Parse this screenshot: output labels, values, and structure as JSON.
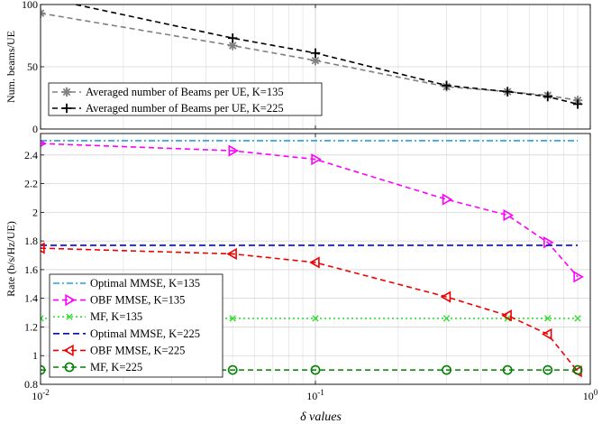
{
  "chart_data": [
    {
      "type": "line",
      "title": "",
      "xlabel": "",
      "ylabel": "Num. beams/UE",
      "xscale": "log",
      "xlim": [
        0.01,
        1
      ],
      "ylim": [
        0,
        100
      ],
      "yticks": [
        0,
        50,
        100
      ],
      "grid": true,
      "legend_position": "bottom-left",
      "x": [
        0.01,
        0.05,
        0.1,
        0.3,
        0.5,
        0.7,
        0.9
      ],
      "series": [
        {
          "name": "Averaged number of Beams per UE, K=135",
          "color": "#808080",
          "marker": "asterisk",
          "dash": "6,4",
          "values": [
            93,
            67,
            55,
            34,
            30,
            27,
            23
          ]
        },
        {
          "name": "Averaged number of Beams per UE, K=225",
          "color": "#000000",
          "marker": "plus",
          "dash": "6,4",
          "values": [
            106,
            73,
            61,
            35,
            30,
            26,
            20
          ]
        }
      ]
    },
    {
      "type": "line",
      "title": "",
      "xlabel": "δ values",
      "ylabel": "Rate (b/s/Hz/UE)",
      "xscale": "log",
      "xlim": [
        0.01,
        1
      ],
      "ylim": [
        0.8,
        2.55
      ],
      "yticks": [
        0.8,
        1,
        1.2,
        1.4,
        1.6,
        1.8,
        2,
        2.2,
        2.4
      ],
      "grid": true,
      "legend_position": "bottom-left",
      "x": [
        0.01,
        0.05,
        0.1,
        0.3,
        0.5,
        0.7,
        0.9
      ],
      "series": [
        {
          "name": "Optimal MMSE, K=135",
          "color": "#1ea0e8",
          "marker": "none",
          "dash": "7,3,2,3",
          "values": [
            2.5,
            2.5,
            2.5,
            2.5,
            2.5,
            2.5,
            2.5
          ]
        },
        {
          "name": "OBF MMSE, K=135",
          "color": "#ff00ff",
          "marker": "triangle-right",
          "dash": "6,4",
          "values": [
            2.48,
            2.43,
            2.37,
            2.09,
            1.98,
            1.79,
            1.55
          ]
        },
        {
          "name": "MF, K=135",
          "color": "#33dd33",
          "marker": "x",
          "dash": "2,3",
          "values": [
            1.26,
            1.26,
            1.26,
            1.26,
            1.26,
            1.26,
            1.26
          ]
        },
        {
          "name": "Optimal MMSE, K=225",
          "color": "#0000ee",
          "marker": "none",
          "dash": "7,4",
          "values": [
            1.77,
            1.77,
            1.77,
            1.77,
            1.77,
            1.77,
            1.77
          ]
        },
        {
          "name": "OBF MMSE, K=225",
          "color": "#ee0000",
          "marker": "triangle-left",
          "dash": "6,4",
          "values": [
            1.75,
            1.71,
            1.65,
            1.41,
            1.28,
            1.15,
            0.89
          ]
        },
        {
          "name": "MF, K=225",
          "color": "#008000",
          "marker": "circle",
          "dash": "6,4",
          "values": [
            0.9,
            0.9,
            0.9,
            0.9,
            0.9,
            0.9,
            0.9
          ]
        }
      ]
    }
  ],
  "x_ticks": [
    {
      "base": "10",
      "exp": "-2",
      "value": 0.01
    },
    {
      "base": "10",
      "exp": "-1",
      "value": 0.1
    },
    {
      "base": "10",
      "exp": "0",
      "value": 1
    }
  ]
}
